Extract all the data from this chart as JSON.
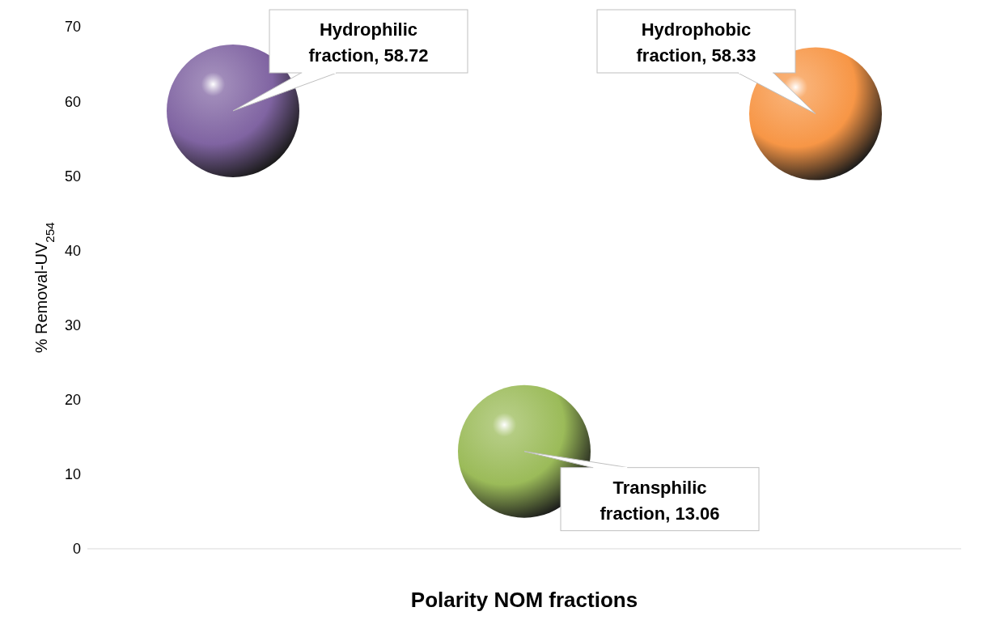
{
  "chart_data": {
    "type": "bubble",
    "xlabel": "Polarity NOM fractions",
    "ylabel": "% Removal-UV$_{254}$",
    "categories": [
      null,
      null,
      null
    ],
    "series": [
      {
        "colors": [
          "#8064a2",
          "#9bbb59",
          "#f79646"
        ],
        "values": [
          58.72,
          13.06,
          58.33
        ],
        "sizes": [
          1,
          1,
          1
        ],
        "value_labels": [
          "Hydrophilic fraction, 58.72",
          "Transphilic fraction, 13.06",
          "Hydrophobic fraction, 58.33"
        ]
      }
    ],
    "ylim": [
      0,
      70
    ],
    "yticks": [
      0,
      10,
      20,
      30,
      40,
      50,
      60,
      70
    ],
    "legend": false
  }
}
